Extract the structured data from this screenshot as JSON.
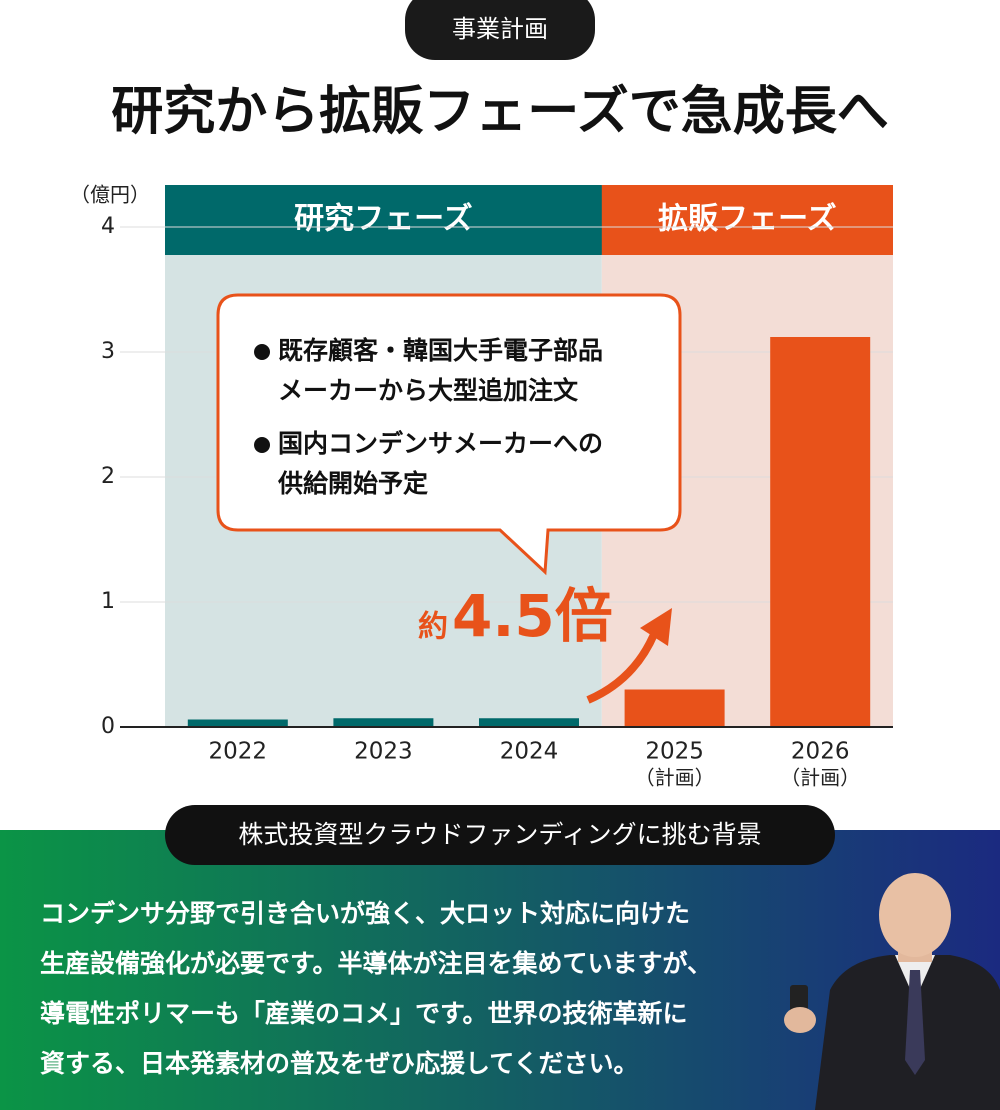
{
  "badge": "事業計画",
  "title": "研究から拡販フェーズで急成長へ",
  "chart_data": {
    "type": "bar",
    "y_unit_label": "（億円）",
    "categories": [
      "2022",
      "2023",
      "2024",
      "2025",
      "2026"
    ],
    "category_notes": [
      null,
      null,
      null,
      "（計画）",
      "（計画）"
    ],
    "values": [
      0.06,
      0.07,
      0.07,
      0.3,
      3.12
    ],
    "colors": [
      "#00696a",
      "#00696a",
      "#00696a",
      "#e8521a",
      "#e8521a"
    ],
    "ylim": [
      0,
      4
    ],
    "yticks": [
      0,
      1,
      2,
      3,
      4
    ],
    "grid": true,
    "phases": [
      {
        "label": "研究フェーズ",
        "color": "#00696a",
        "shade": "#d5e3e3"
      },
      {
        "label": "拡販フェーズ",
        "color": "#e8521a",
        "shade": "#f3ddd6"
      }
    ],
    "callout": [
      [
        "既存顧客・韓国大手電子部品",
        "メーカーから大型追加注文"
      ],
      [
        "国内コンデンサメーカーへの",
        "供給開始予定"
      ]
    ],
    "annotation": {
      "prefix": "約",
      "text": "4.5倍"
    }
  },
  "background": {
    "heading": "株式投資型クラウドファンディングに挑む背景",
    "lines": [
      "コンデンサ分野で引き合いが強く、大ロット対応に向けた",
      "生産設備強化が必要です。半導体が注目を集めていますが、",
      "導電性ポリマーも「産業のコメ」です。世界の技術革新に",
      "資する、日本発素材の普及をぜひ応援してください。"
    ]
  }
}
